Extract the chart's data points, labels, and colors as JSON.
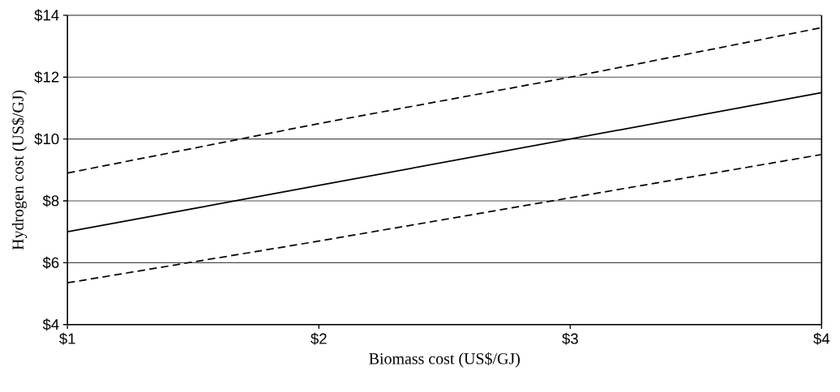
{
  "chart_data": {
    "type": "line",
    "xlabel": "Biomass cost (US$/GJ)",
    "ylabel": "Hydrogen cost (US$/GJ)",
    "x": [
      1,
      2,
      3,
      4
    ],
    "series": [
      {
        "color": "#000000",
        "line_style": "dashed",
        "values": [
          8.9,
          10.5,
          12.0,
          13.6
        ]
      },
      {
        "color": "#000000",
        "line_style": "solid",
        "values": [
          7.0,
          8.5,
          10.0,
          11.5
        ]
      },
      {
        "color": "#000000",
        "line_style": "dashed",
        "values": [
          5.35,
          6.7,
          8.1,
          9.5
        ]
      }
    ],
    "xlim": [
      1,
      4
    ],
    "ylim": [
      4,
      14
    ],
    "xticks": [
      {
        "value": 1,
        "label": "$1"
      },
      {
        "value": 2,
        "label": "$2"
      },
      {
        "value": 3,
        "label": "$3"
      },
      {
        "value": 4,
        "label": "$4"
      }
    ],
    "yticks": [
      {
        "value": 4,
        "label": "$4"
      },
      {
        "value": 6,
        "label": "$6"
      },
      {
        "value": 8,
        "label": "$8"
      },
      {
        "value": 10,
        "label": "$10"
      },
      {
        "value": 12,
        "label": "$12"
      },
      {
        "value": 14,
        "label": "$14"
      }
    ],
    "grid": "y",
    "marker": "none"
  }
}
